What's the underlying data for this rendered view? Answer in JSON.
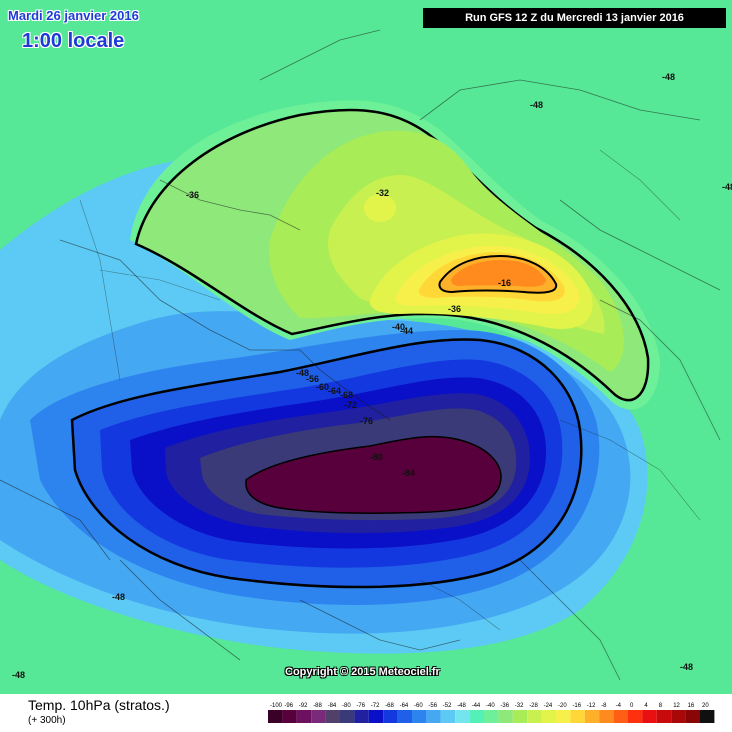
{
  "header": {
    "valid_date": "Mardi 26 janvier 2016",
    "local_time": "1:00 locale",
    "run_info": "Run GFS 12 Z du Mercredi 13 janvier 2016"
  },
  "copyright": "Copyright © 2015 Meteociel.fr",
  "footer": {
    "title": "Temp. 10hPa (stratos.)",
    "subtitle": "(+ 300h)"
  },
  "legend": {
    "labels": [
      "-100",
      "-96",
      "-92",
      "-88",
      "-84",
      "-80",
      "-76",
      "-72",
      "-68",
      "-64",
      "-60",
      "-56",
      "-52",
      "-48",
      "-44",
      "-40",
      "-36",
      "-32",
      "-28",
      "-24",
      "-20",
      "-16",
      "-12",
      "-8",
      "-4",
      "0",
      "4",
      "8",
      "12",
      "16",
      "20"
    ],
    "colors": [
      "#3a0028",
      "#58003c",
      "#6e1060",
      "#7a2a7a",
      "#50406a",
      "#3a3a78",
      "#2020a0",
      "#0a10c8",
      "#1438e0",
      "#2060e8",
      "#2e84ee",
      "#44a8f2",
      "#5ccaf4",
      "#74e4ee",
      "#54f0b8",
      "#6ef098",
      "#8ee87a",
      "#a8ec58",
      "#c8f050",
      "#e2f44a",
      "#f8f04a",
      "#ffd838",
      "#ffb02a",
      "#ff8a1e",
      "#ff5e14",
      "#ff300e",
      "#e81010",
      "#c80a0a",
      "#a80808",
      "#880606",
      "#101010"
    ]
  },
  "map_labels": {
    "m48_top": "-48",
    "m48_topright": "-48",
    "m48_right": "-48",
    "m48_bottomleft": "-48",
    "m48_left": "-48",
    "m48_bottomright": "-48",
    "m36_alaska": "-36",
    "m32_arctic": "-32",
    "m36_europe": "-36",
    "m16_warm": "-16",
    "m40": "-40",
    "m44": "-44",
    "m48_jet": "-48",
    "m56": "-56",
    "m60": "-60",
    "m64": "-64",
    "m68": "-68",
    "m72": "-72",
    "m76": "-76",
    "m80": "-80",
    "m84": "-84"
  }
}
